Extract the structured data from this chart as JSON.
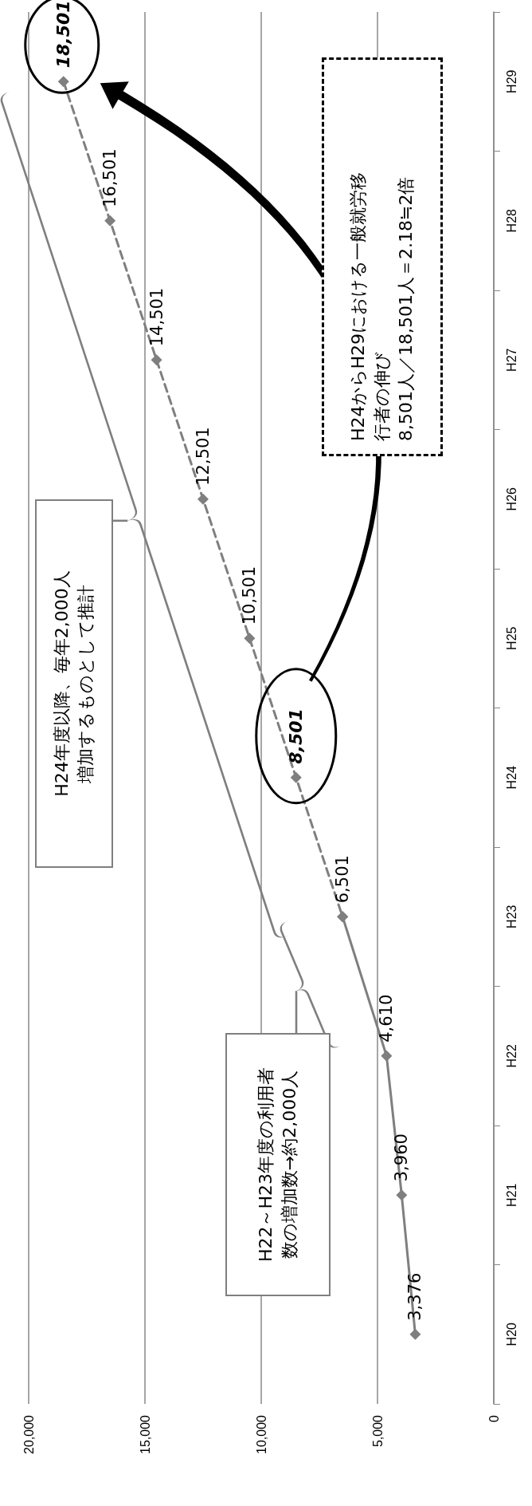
{
  "chart_data": {
    "type": "line",
    "orientation": "horizontal",
    "categories": [
      "H29",
      "H28",
      "H27",
      "H26",
      "H25",
      "H24",
      "H23",
      "H22",
      "H21",
      "H20"
    ],
    "series": [
      {
        "color": "#7f7f7f",
        "line_style": "solid",
        "values": [
          null,
          null,
          null,
          null,
          null,
          null,
          6501,
          4610,
          3960,
          3376
        ],
        "value_labels": [
          null,
          null,
          null,
          null,
          null,
          null,
          null,
          "4,610",
          "3,960",
          "3,376"
        ]
      },
      {
        "color": "#7f7f7f",
        "line_style": "dashed",
        "values": [
          18501,
          16501,
          14501,
          12501,
          10501,
          8501,
          6501,
          null,
          null,
          null
        ],
        "value_labels": [
          "18,501",
          "16,501",
          "14,501",
          "12,501",
          "10,501",
          "8,501",
          "6,501",
          null,
          null,
          null
        ]
      }
    ],
    "xlim": [
      20000,
      0
    ],
    "xticks": [
      {
        "value": 20000,
        "label": "20,000"
      },
      {
        "value": 15000,
        "label": "15,000"
      },
      {
        "value": 10000,
        "label": "10,000"
      },
      {
        "value": 5000,
        "label": "5,000"
      },
      0
    ],
    "grid": "x",
    "marker": "diamond",
    "annotations": [
      "H22～H23年度の利用者数の増加数→約2,000人",
      "H24年度以降、毎年2,000人増加するものとして推計",
      "H24からH29における一般就労移行者の伸び",
      "8,501人／18,501人＝2.18≒2倍"
    ]
  }
}
